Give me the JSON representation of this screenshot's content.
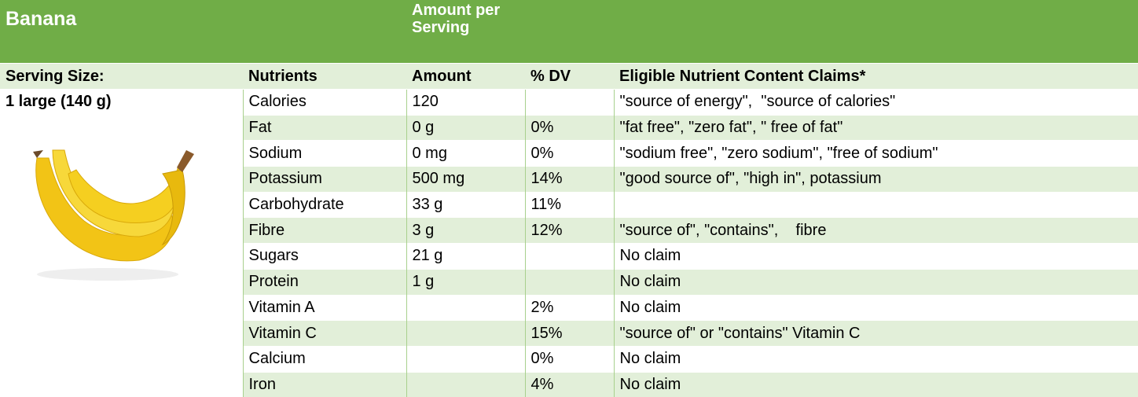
{
  "header": {
    "title": "Banana",
    "amount_per_serving": "Amount per Serving"
  },
  "columns": [
    "Serving Size:",
    "Nutrients",
    "Amount",
    "% DV",
    "Eligible Nutrient Content Claims*"
  ],
  "serving_size": "1 large (140 g)",
  "rows": [
    [
      "Calories",
      "120",
      null,
      "\"source of energy\",  \"source of calories\""
    ],
    [
      "Fat",
      "0 g",
      "0%",
      "\"fat free\", \"zero fat\", \" free of fat\""
    ],
    [
      "Sodium",
      "0 mg",
      "0%",
      "\"sodium free\", \"zero sodium\", \"free of sodium\""
    ],
    [
      "Potassium",
      "500 mg",
      "14%",
      "\"good source of\", \"high in\", potassium"
    ],
    [
      "Carbohydrate",
      "33 g",
      "11%",
      null
    ],
    [
      "Fibre",
      "3 g",
      "12%",
      "\"source of\", \"contains\",    fibre"
    ],
    [
      "Sugars",
      "21 g",
      null,
      "No claim"
    ],
    [
      "Protein",
      "1 g",
      null,
      "No claim"
    ],
    [
      "Vitamin A",
      null,
      "2%",
      "No claim"
    ],
    [
      "Vitamin C",
      null,
      "15%",
      "\"source of\" or \"contains\" Vitamin C"
    ],
    [
      "Calcium",
      null,
      "0%",
      "No claim"
    ],
    [
      "Iron",
      null,
      "4%",
      "No claim"
    ]
  ]
}
